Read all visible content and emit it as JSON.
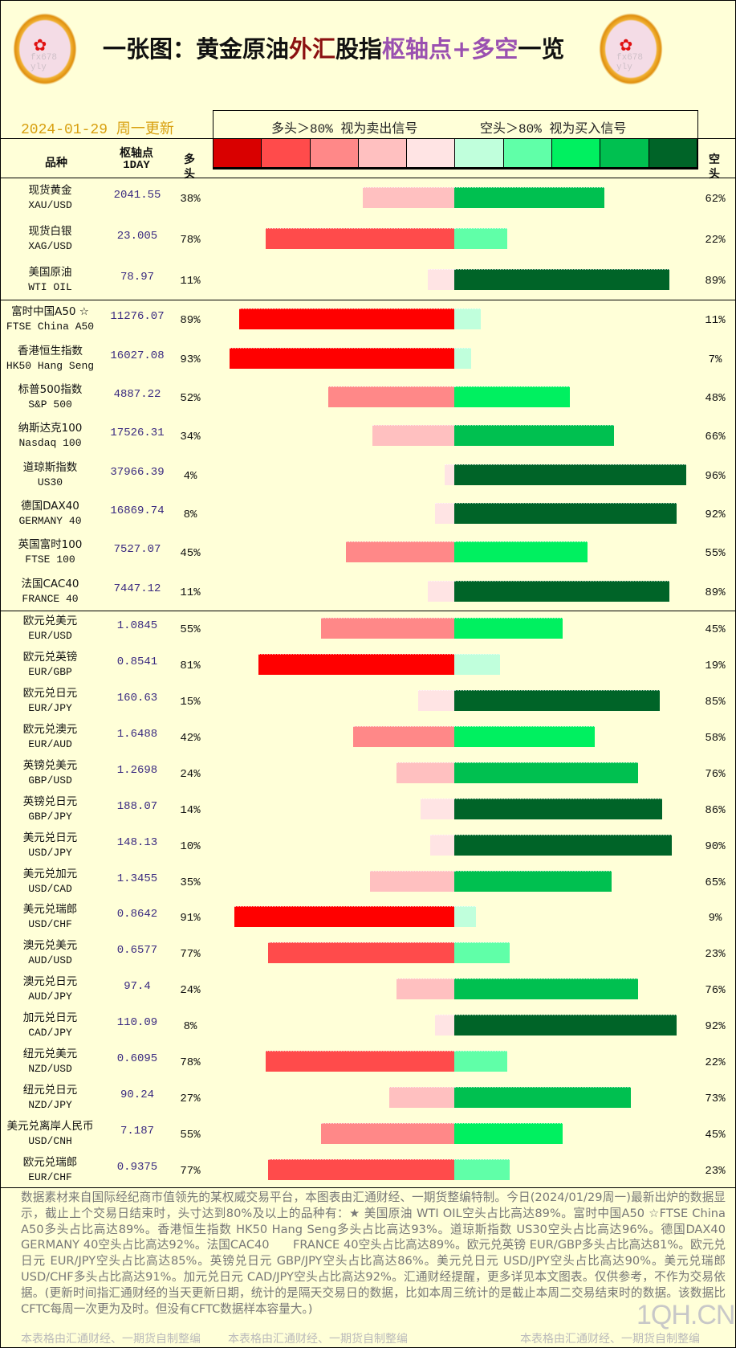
{
  "header": {
    "title_parts": [
      "一张图：黄金原油",
      "外汇",
      "股指",
      "枢轴点+多空",
      "一览"
    ],
    "date": "2024-01-29 周一更新",
    "legend_long": "多头＞80% 视为卖出信号",
    "legend_short": "空头＞80% 视为买入信号",
    "col_name": "品种",
    "col_pivot": "枢轴点",
    "col_pivot_sub": "1DAY",
    "col_long": "多头",
    "col_short": "空头",
    "logo_watermark": "fx678 yly"
  },
  "legend_colors": [
    "#d90000",
    "#ff4b4b",
    "#ff8888",
    "#ffc0c0",
    "#ffe4e4",
    "#c0ffdc",
    "#60ffa8",
    "#00f060",
    "#00c050",
    "#006428"
  ],
  "bar_colors": {
    "long": [
      "#ffe4e4",
      "#ffc0c0",
      "#ff8888",
      "#ff4b4b",
      "#ff0000"
    ],
    "short": [
      "#c0ffdc",
      "#60ffa8",
      "#00f060",
      "#00c050",
      "#006428"
    ]
  },
  "sections": [
    [
      {
        "name": "现货黄金",
        "code": "XAU/USD",
        "pivot": "2041.55",
        "long": 38,
        "short": 62
      },
      {
        "name": "现货白银",
        "code": "XAG/USD",
        "pivot": "23.005",
        "long": 78,
        "short": 22
      },
      {
        "name": "美国原油",
        "code": "WTI OIL",
        "pivot": "78.97",
        "long": 11,
        "short": 89
      }
    ],
    [
      {
        "name": "富时中国A50 ☆",
        "code": "FTSE China A50",
        "pivot": "11276.07",
        "long": 89,
        "short": 11
      },
      {
        "name": "香港恒生指数",
        "code": "HK50 Hang Seng",
        "pivot": "16027.08",
        "long": 93,
        "short": 7
      },
      {
        "name": "标普500指数",
        "code": "S&P 500",
        "pivot": "4887.22",
        "long": 52,
        "short": 48
      },
      {
        "name": "纳斯达克100",
        "code": "Nasdaq 100",
        "pivot": "17526.31",
        "long": 34,
        "short": 66
      },
      {
        "name": "道琼斯指数",
        "code": "US30",
        "pivot": "37966.39",
        "long": 4,
        "short": 96
      },
      {
        "name": "德国DAX40",
        "code": "GERMANY 40",
        "pivot": "16869.74",
        "long": 8,
        "short": 92
      },
      {
        "name": "英国富时100",
        "code": "FTSE 100",
        "pivot": "7527.07",
        "long": 45,
        "short": 55
      },
      {
        "name": "法国CAC40",
        "code": "FRANCE 40",
        "pivot": "7447.12",
        "long": 11,
        "short": 89
      }
    ],
    [
      {
        "name": "欧元兑美元",
        "code": "EUR/USD",
        "pivot": "1.0845",
        "long": 55,
        "short": 45
      },
      {
        "name": "欧元兑英镑",
        "code": "EUR/GBP",
        "pivot": "0.8541",
        "long": 81,
        "short": 19
      },
      {
        "name": "欧元兑日元",
        "code": "EUR/JPY",
        "pivot": "160.63",
        "long": 15,
        "short": 85
      },
      {
        "name": "欧元兑澳元",
        "code": "EUR/AUD",
        "pivot": "1.6488",
        "long": 42,
        "short": 58
      },
      {
        "name": "英镑兑美元",
        "code": "GBP/USD",
        "pivot": "1.2698",
        "long": 24,
        "short": 76
      },
      {
        "name": "英镑兑日元",
        "code": "GBP/JPY",
        "pivot": "188.07",
        "long": 14,
        "short": 86
      },
      {
        "name": "美元兑日元",
        "code": "USD/JPY",
        "pivot": "148.13",
        "long": 10,
        "short": 90
      },
      {
        "name": "美元兑加元",
        "code": "USD/CAD",
        "pivot": "1.3455",
        "long": 35,
        "short": 65
      },
      {
        "name": "美元兑瑞郎",
        "code": "USD/CHF",
        "pivot": "0.8642",
        "long": 91,
        "short": 9
      },
      {
        "name": "澳元兑美元",
        "code": "AUD/USD",
        "pivot": "0.6577",
        "long": 77,
        "short": 23
      },
      {
        "name": "澳元兑日元",
        "code": "AUD/JPY",
        "pivot": "97.4",
        "long": 24,
        "short": 76
      },
      {
        "name": "加元兑日元",
        "code": "CAD/JPY",
        "pivot": "110.09",
        "long": 8,
        "short": 92
      },
      {
        "name": "纽元兑美元",
        "code": "NZD/USD",
        "pivot": "0.6095",
        "long": 78,
        "short": 22
      },
      {
        "name": "纽元兑日元",
        "code": "NZD/JPY",
        "pivot": "90.24",
        "long": 27,
        "short": 73
      },
      {
        "name": "美元兑离岸人民币",
        "code": "USD/CNH",
        "pivot": "7.187",
        "long": 55,
        "short": 45
      },
      {
        "name": "欧元兑瑞郎",
        "code": "EUR/CHF",
        "pivot": "0.9375",
        "long": 77,
        "short": 23
      }
    ]
  ],
  "footer": {
    "text": "数据素材来自国际经纪商市值领先的某权威交易平台，本图表由汇通财经、一期货整编特制。今日(2024/01/29周一)最新出炉的数据显示，截止上个交易日结束时，头寸达到80%及以上的品种有：★ 美国原油 WTI OIL空头占比高达89%。富时中国A50 ☆FTSE China A50多头占比高达89%。香港恒生指数 HK50 Hang Seng多头占比高达93%。道琼斯指数 US30空头占比高达96%。德国DAX40　　GERMANY 40空头占比高达92%。法国CAC40　　FRANCE 40空头占比高达89%。欧元兑英镑 EUR/GBP多头占比高达81%。欧元兑日元 EUR/JPY空头占比高达85%。英镑兑日元 GBP/JPY空头占比高达86%。美元兑日元 USD/JPY空头占比高达90%。美元兑瑞郎 USD/CHF多头占比高达91%。加元兑日元 CAD/JPY空头占比高达92%。汇通财经提醒，更多详见本文图表。仅供参考，不作为交易依据。(更新时间指汇通财经的当天更新日期，统计的是隔天交易日的数据，比如本周三统计的是截止本周二交易结束时的数据。该数据比CFTC每周一次更为及时。但没有CFTC数据样本容量大。)",
    "credit": "本表格由汇通财经、一期货自制整编",
    "site": "1QH.CN"
  }
}
